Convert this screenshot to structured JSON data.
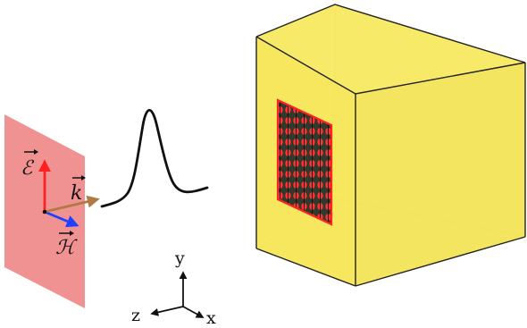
{
  "labels": {
    "electric_field": "ℰ",
    "wave_vector": "k",
    "magnetic_field": "ℋ",
    "axis_y": "y",
    "axis_z": "z",
    "axis_x": "x"
  },
  "colors": {
    "plane_fill": "#f08c8c",
    "cube_fill": "#f7e85c",
    "cube_edge": "#222222",
    "array_frame": "#ff2222",
    "array_fill": "#2f3a2c",
    "array_dots": "#ff3030",
    "e_arrow": "#ff2020",
    "h_arrow": "#2040ff",
    "k_arrow": "#b07a45",
    "pulse": "#111111",
    "axes": "#111111"
  },
  "icons": {
    "plane": "plane-wave-sheet",
    "pulse": "gaussian-pulse",
    "cube": "cube-domain",
    "array": "dipole-array"
  }
}
